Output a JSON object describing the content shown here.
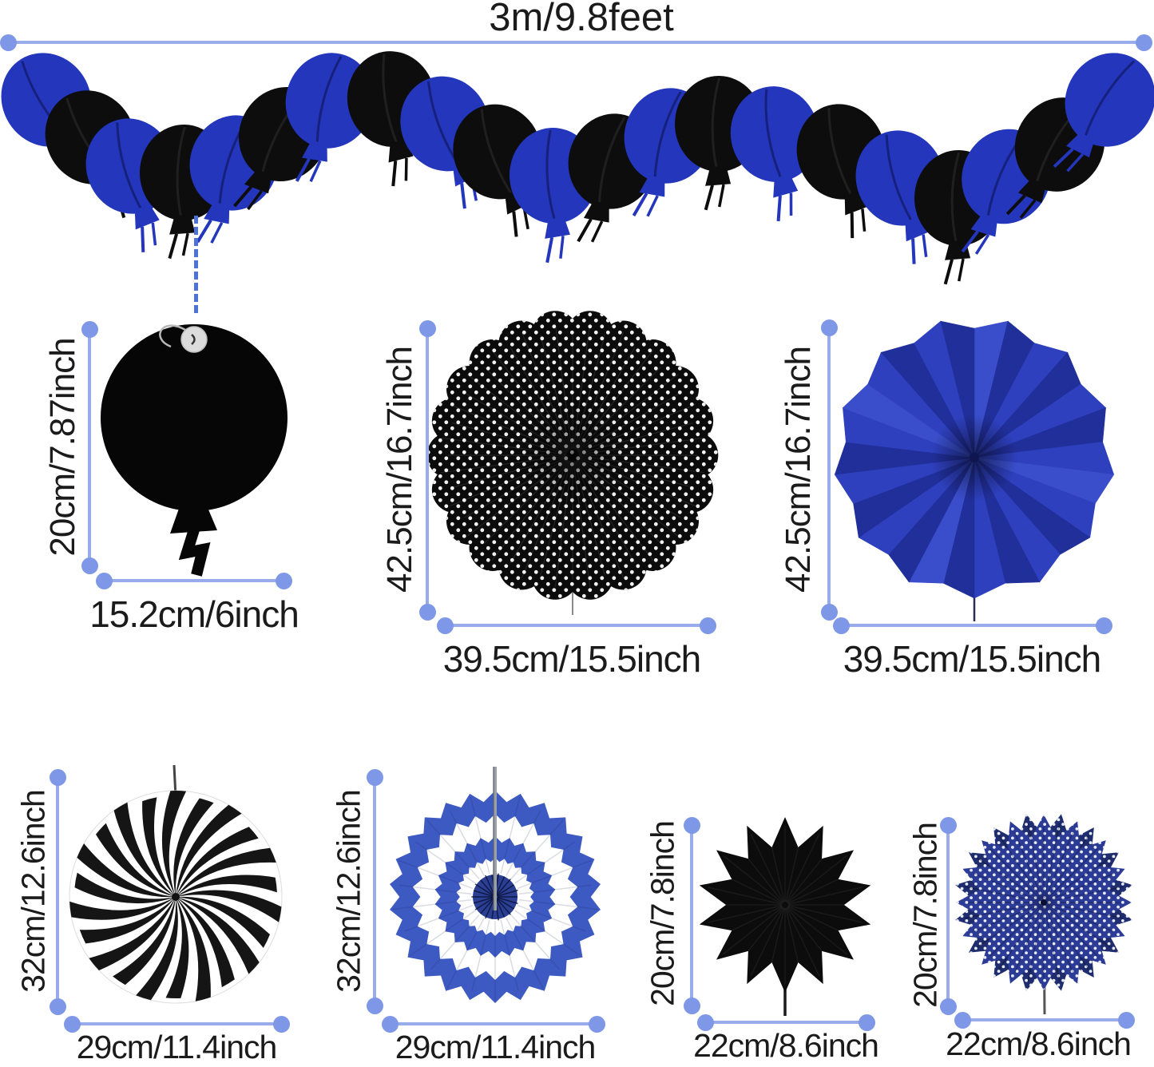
{
  "title": "3m/9.8feet",
  "garland": {
    "balloon_count": 21,
    "sequence": [
      "blue",
      "black",
      "blue",
      "black",
      "blue",
      "black",
      "blue",
      "black",
      "blue",
      "black",
      "blue",
      "black",
      "blue",
      "black",
      "blue",
      "black",
      "blue",
      "black",
      "blue",
      "black",
      "blue"
    ],
    "colors": {
      "blue": "#2336BC",
      "black": "#0D0D0D"
    }
  },
  "measure": {
    "line_color": "#98ACEC",
    "dot_color": "#7E97E6",
    "dash_color": "#4E73D8",
    "text_color": "#1B1B1B"
  },
  "items": {
    "balloon": {
      "height_label": "20cm/7.87inch",
      "width_label": "15.2cm/6inch"
    },
    "fan_black_dots": {
      "height_label": "42.5cm/16.7inch",
      "width_label": "39.5cm/15.5inch"
    },
    "fan_blue": {
      "height_label": "42.5cm/16.7inch",
      "width_label": "39.5cm/15.5inch"
    },
    "fan_striped": {
      "height_label": "32cm/12.6inch",
      "width_label": "29cm/11.4inch"
    },
    "fan_rings": {
      "height_label": "32cm/12.6inch",
      "width_label": "29cm/11.4inch"
    },
    "fan_black_star": {
      "height_label": "20cm/7.8inch",
      "width_label": "22cm/8.6inch"
    },
    "fan_navy_dots": {
      "height_label": "20cm/7.8inch",
      "width_label": "22cm/8.6inch"
    }
  }
}
